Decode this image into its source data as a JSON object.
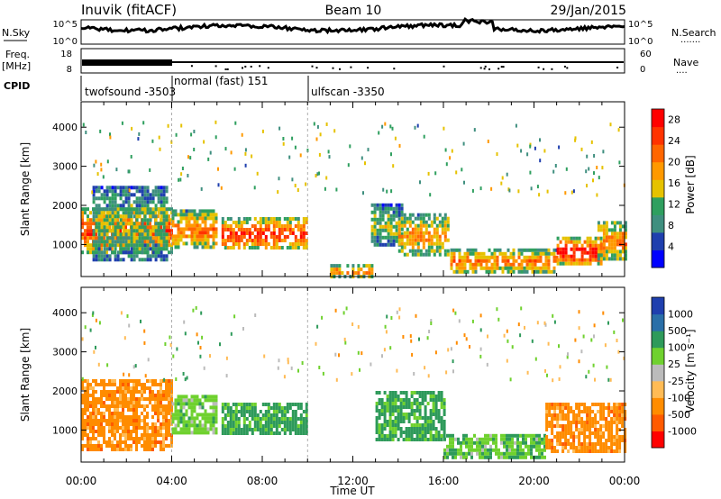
{
  "header": {
    "station": "Inuvik (fitACF)",
    "beam": "Beam 10",
    "date": "29/Jan/2015"
  },
  "summary_panels": {
    "nsky_label": "N.Sky",
    "nsearch_label": "N.Search",
    "nsearch_dots": "·······",
    "log_tick_top": "10^5",
    "log_tick_bottom": "10^0",
    "freq_label_1": "Freq.",
    "freq_label_2": "[MHz]",
    "freq_ticks": [
      "18",
      "8"
    ],
    "nave_label": "Nave",
    "nave_dots": "····",
    "nave_ticks": [
      "60",
      "0"
    ],
    "cpid_label": "CPID",
    "cpid_segments": [
      {
        "label": "twofsound -3503",
        "start_hour": 0
      },
      {
        "label": "normal (fast) 151",
        "start_hour": 4
      },
      {
        "label": "ulfscan -3350",
        "start_hour": 10
      }
    ]
  },
  "colors": {
    "power_scale": [
      "#0000ff",
      "#1f3fae",
      "#3f8f7f",
      "#2f9f5f",
      "#e6c200",
      "#ff9900",
      "#ff6600",
      "#ff3300",
      "#ff0000"
    ],
    "velocity_scale": [
      "#ff0000",
      "#ff5a00",
      "#ff8c00",
      "#ffbb55",
      "#bbbbbb",
      "#6fd12e",
      "#2e9a5a",
      "#2a6fa8",
      "#1f3fae"
    ]
  },
  "chart_data": [
    {
      "type": "heatmap",
      "panel": "power",
      "ylabel": "Slant Range [km]",
      "xlabel": "Time UT",
      "x_ticks": [
        "00:00",
        "04:00",
        "08:00",
        "12:00",
        "16:00",
        "20:00",
        "00:00"
      ],
      "y_ticks": [
        "1000",
        "2000",
        "3000",
        "4000"
      ],
      "xlim_hours": [
        0,
        24
      ],
      "ylim_km": [
        180,
        4650
      ],
      "colorbar": {
        "label": "Power [dB]",
        "range": [
          0,
          30
        ],
        "ticks": [
          "4",
          "8",
          "12",
          "16",
          "20",
          "24",
          "28"
        ]
      },
      "regions": [
        {
          "t0": 0.0,
          "t1": 4.0,
          "r0": 800,
          "r1": 1950,
          "value": 26
        },
        {
          "t0": 0.5,
          "t1": 3.8,
          "r0": 600,
          "r1": 2500,
          "value": 14
        },
        {
          "t0": 4.0,
          "t1": 6.0,
          "r0": 900,
          "r1": 1900,
          "value": 22
        },
        {
          "t0": 6.2,
          "t1": 10.0,
          "r0": 900,
          "r1": 1700,
          "value": 26
        },
        {
          "t0": 11.0,
          "t1": 12.8,
          "r0": 200,
          "r1": 500,
          "value": 22
        },
        {
          "t0": 12.8,
          "t1": 14.2,
          "r0": 1000,
          "r1": 2050,
          "value": 14
        },
        {
          "t0": 14.0,
          "t1": 16.2,
          "r0": 700,
          "r1": 1800,
          "value": 20
        },
        {
          "t0": 16.3,
          "t1": 21.0,
          "r0": 300,
          "r1": 900,
          "value": 22
        },
        {
          "t0": 21.0,
          "t1": 23.0,
          "r0": 500,
          "r1": 1200,
          "value": 30
        },
        {
          "t0": 22.8,
          "t1": 24.0,
          "r0": 600,
          "r1": 1600,
          "value": 22
        }
      ]
    },
    {
      "type": "heatmap",
      "panel": "velocity",
      "ylabel": "Slant Range [km]",
      "xlabel": "Time UT",
      "x_ticks": [
        "00:00",
        "04:00",
        "08:00",
        "12:00",
        "16:00",
        "20:00",
        "00:00"
      ],
      "y_ticks": [
        "1000",
        "2000",
        "3000",
        "4000"
      ],
      "xlim_hours": [
        0,
        24
      ],
      "ylim_km": [
        180,
        4650
      ],
      "colorbar": {
        "label": "Velocity [m s⁻¹]",
        "bin_edges": [
          -1000,
          -500,
          -100,
          -25,
          25,
          100,
          500,
          1000
        ],
        "ticks": [
          "-1000",
          "-500",
          "-100",
          "-25",
          "25",
          "100",
          "500",
          "1000"
        ]
      },
      "regions": [
        {
          "t0": 0.0,
          "t1": 4.0,
          "r0": 500,
          "r1": 2300,
          "value": -300
        },
        {
          "t0": 4.0,
          "t1": 6.0,
          "r0": 900,
          "r1": 1900,
          "value": 60
        },
        {
          "t0": 6.2,
          "t1": 10.0,
          "r0": 900,
          "r1": 1700,
          "value": 200
        },
        {
          "t0": 13.0,
          "t1": 16.0,
          "r0": 800,
          "r1": 2000,
          "value": 150
        },
        {
          "t0": 16.0,
          "t1": 20.5,
          "r0": 300,
          "r1": 900,
          "value": 80
        },
        {
          "t0": 20.5,
          "t1": 24.0,
          "r0": 500,
          "r1": 1700,
          "value": -300
        }
      ]
    }
  ]
}
